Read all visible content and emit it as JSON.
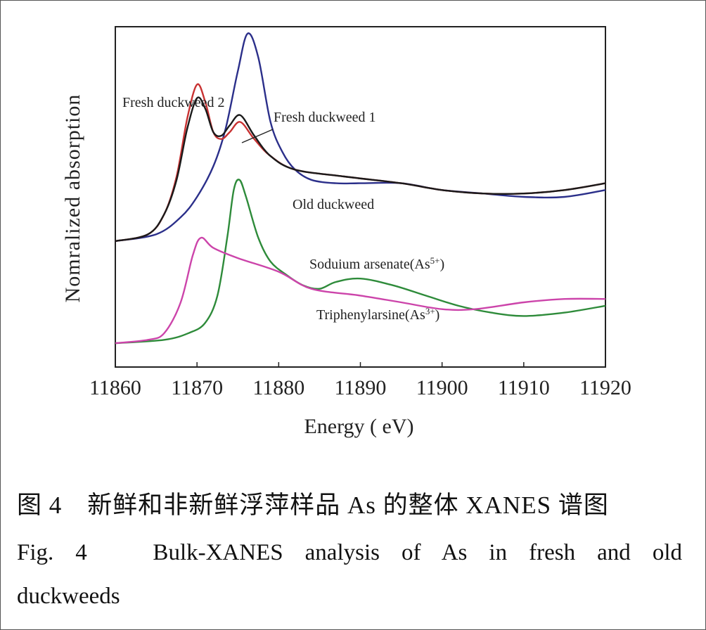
{
  "chart_data": {
    "type": "line",
    "title": "",
    "xlabel": "Energy ( eV)",
    "ylabel": "Nomralized absorption",
    "xlim": [
      11860,
      11920
    ],
    "x_ticks": [
      "11860",
      "11870",
      "11880",
      "11890",
      "11900",
      "11910",
      "11920"
    ],
    "y_ticks_shown": false,
    "grid": false,
    "legend": "none (curves labeled directly)",
    "series": [
      {
        "name": "Fresh duckweed 2",
        "color": "#c83232",
        "label_parts": [
          "Fresh duckweed 2"
        ],
        "points": [
          [
            11860,
            0.37
          ],
          [
            11864,
            0.39
          ],
          [
            11866,
            0.45
          ],
          [
            11867.5,
            0.56
          ],
          [
            11868.8,
            0.73
          ],
          [
            11870,
            0.83
          ],
          [
            11871,
            0.78
          ],
          [
            11872,
            0.69
          ],
          [
            11873,
            0.67
          ],
          [
            11874,
            0.69
          ],
          [
            11875.3,
            0.72
          ],
          [
            11877,
            0.67
          ],
          [
            11879,
            0.62
          ],
          [
            11882,
            0.58
          ],
          [
            11888,
            0.56
          ],
          [
            11895,
            0.54
          ],
          [
            11900,
            0.52
          ],
          [
            11905,
            0.51
          ],
          [
            11910,
            0.51
          ],
          [
            11915,
            0.52
          ],
          [
            11920,
            0.54
          ]
        ]
      },
      {
        "name": "Fresh duckweed 1",
        "color": "#1a1a1a",
        "label_parts": [
          "Fresh duckweed 1"
        ],
        "points": [
          [
            11860,
            0.37
          ],
          [
            11864,
            0.39
          ],
          [
            11866,
            0.45
          ],
          [
            11867.5,
            0.55
          ],
          [
            11868.8,
            0.7
          ],
          [
            11870,
            0.79
          ],
          [
            11871,
            0.76
          ],
          [
            11872,
            0.69
          ],
          [
            11873,
            0.68
          ],
          [
            11874,
            0.71
          ],
          [
            11875.3,
            0.74
          ],
          [
            11877,
            0.68
          ],
          [
            11879,
            0.62
          ],
          [
            11882,
            0.58
          ],
          [
            11888,
            0.56
          ],
          [
            11895,
            0.54
          ],
          [
            11900,
            0.52
          ],
          [
            11905,
            0.51
          ],
          [
            11910,
            0.51
          ],
          [
            11915,
            0.52
          ],
          [
            11920,
            0.54
          ]
        ]
      },
      {
        "name": "Old duckweed",
        "color": "#2b2f8a",
        "label_parts": [
          "Old duckweed"
        ],
        "points": [
          [
            11860,
            0.37
          ],
          [
            11865,
            0.39
          ],
          [
            11868,
            0.44
          ],
          [
            11870,
            0.5
          ],
          [
            11872,
            0.59
          ],
          [
            11873.5,
            0.7
          ],
          [
            11875,
            0.87
          ],
          [
            11876.2,
            0.98
          ],
          [
            11877.5,
            0.91
          ],
          [
            11879,
            0.72
          ],
          [
            11880.5,
            0.63
          ],
          [
            11882,
            0.58
          ],
          [
            11884,
            0.55
          ],
          [
            11887,
            0.54
          ],
          [
            11890,
            0.54
          ],
          [
            11895,
            0.54
          ],
          [
            11900,
            0.52
          ],
          [
            11905,
            0.51
          ],
          [
            11910,
            0.5
          ],
          [
            11915,
            0.5
          ],
          [
            11920,
            0.52
          ]
        ]
      },
      {
        "name": "Soduium arsenate(As5+)",
        "color": "#2e8b3a",
        "label_parts": [
          "Soduium arsenate(As",
          "5+",
          ")"
        ],
        "points": [
          [
            11860,
            0.07
          ],
          [
            11866,
            0.08
          ],
          [
            11869,
            0.1
          ],
          [
            11871,
            0.13
          ],
          [
            11872.5,
            0.21
          ],
          [
            11873.7,
            0.38
          ],
          [
            11874.5,
            0.52
          ],
          [
            11875.2,
            0.55
          ],
          [
            11876,
            0.5
          ],
          [
            11877.5,
            0.38
          ],
          [
            11879,
            0.31
          ],
          [
            11881,
            0.27
          ],
          [
            11883,
            0.24
          ],
          [
            11885,
            0.23
          ],
          [
            11887,
            0.25
          ],
          [
            11890,
            0.26
          ],
          [
            11894,
            0.24
          ],
          [
            11898,
            0.21
          ],
          [
            11902,
            0.18
          ],
          [
            11906,
            0.16
          ],
          [
            11910,
            0.15
          ],
          [
            11915,
            0.16
          ],
          [
            11920,
            0.18
          ]
        ]
      },
      {
        "name": "Triphenylarsine(As3+)",
        "color": "#cc44aa",
        "label_parts": [
          "Triphenylarsine(As",
          "3+",
          ")"
        ],
        "points": [
          [
            11860,
            0.07
          ],
          [
            11864,
            0.08
          ],
          [
            11866,
            0.1
          ],
          [
            11868,
            0.19
          ],
          [
            11869.5,
            0.33
          ],
          [
            11870.5,
            0.38
          ],
          [
            11872,
            0.35
          ],
          [
            11875,
            0.32
          ],
          [
            11880,
            0.28
          ],
          [
            11884,
            0.23
          ],
          [
            11890,
            0.21
          ],
          [
            11895,
            0.19
          ],
          [
            11900,
            0.17
          ],
          [
            11904,
            0.17
          ],
          [
            11910,
            0.19
          ],
          [
            11915,
            0.2
          ],
          [
            11920,
            0.2
          ]
        ]
      }
    ]
  },
  "caption": {
    "zh": "图 4　新鲜和非新鲜浮萍样品 As 的整体 XANES 谱图",
    "en": "Fig. 4　 Bulk-XANES analysis of As in fresh and old duckweeds"
  }
}
